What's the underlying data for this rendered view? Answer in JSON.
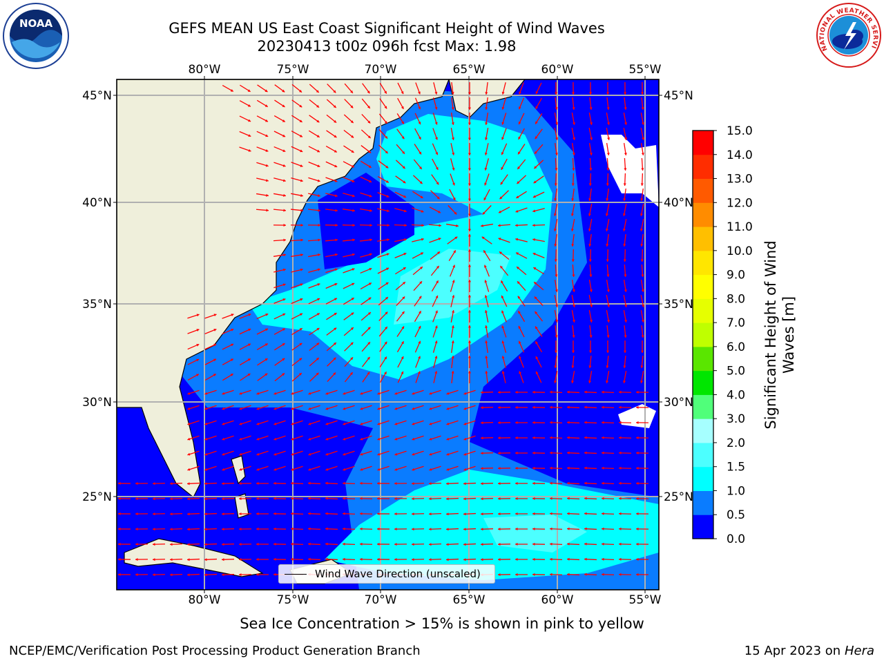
{
  "title": {
    "line1": "GEFS MEAN US East Coast Significant Height of Wind Waves",
    "line2": "20230413 t00z 096h fcst   Max: 1.98"
  },
  "map": {
    "lon_labels": [
      "80°W",
      "75°W",
      "70°W",
      "65°W",
      "60°W",
      "55°W"
    ],
    "lat_labels": [
      "45°N",
      "40°N",
      "35°N",
      "30°N",
      "25°N"
    ],
    "legend_label": "Wind Wave Direction (unscaled)",
    "arrow_color": "#ff0000",
    "land_color": "#efefdb"
  },
  "colorbar": {
    "label_line1": "Significant Height of Wind",
    "label_line2": "Waves [m]",
    "ticks": [
      "0.0",
      "0.5",
      "1.0",
      "1.5",
      "2.0",
      "3.0",
      "4.0",
      "5.0",
      "6.0",
      "7.0",
      "8.0",
      "9.0",
      "10.0",
      "11.0",
      "12.0",
      "13.0",
      "14.0",
      "15.0"
    ],
    "colors": [
      "#0000ff",
      "#0a7cff",
      "#00ffff",
      "#4cffff",
      "#a6ffff",
      "#50ff7a",
      "#00e600",
      "#5ae600",
      "#bfff00",
      "#e6ff00",
      "#ffff00",
      "#ffe600",
      "#ffbf00",
      "#ff8c00",
      "#ff5a00",
      "#ff2d00",
      "#ff0000"
    ]
  },
  "logos": {
    "noaa": "NOAA",
    "nws": "NATIONAL WEATHER SERVICE"
  },
  "footer": {
    "ice_note": "Sea Ice Concentration > 15% is shown in pink to yellow",
    "branch": "NCEP/EMC/Verification Post Processing Product Generation Branch",
    "date": "15 Apr 2023 on",
    "machine": "Hera"
  }
}
